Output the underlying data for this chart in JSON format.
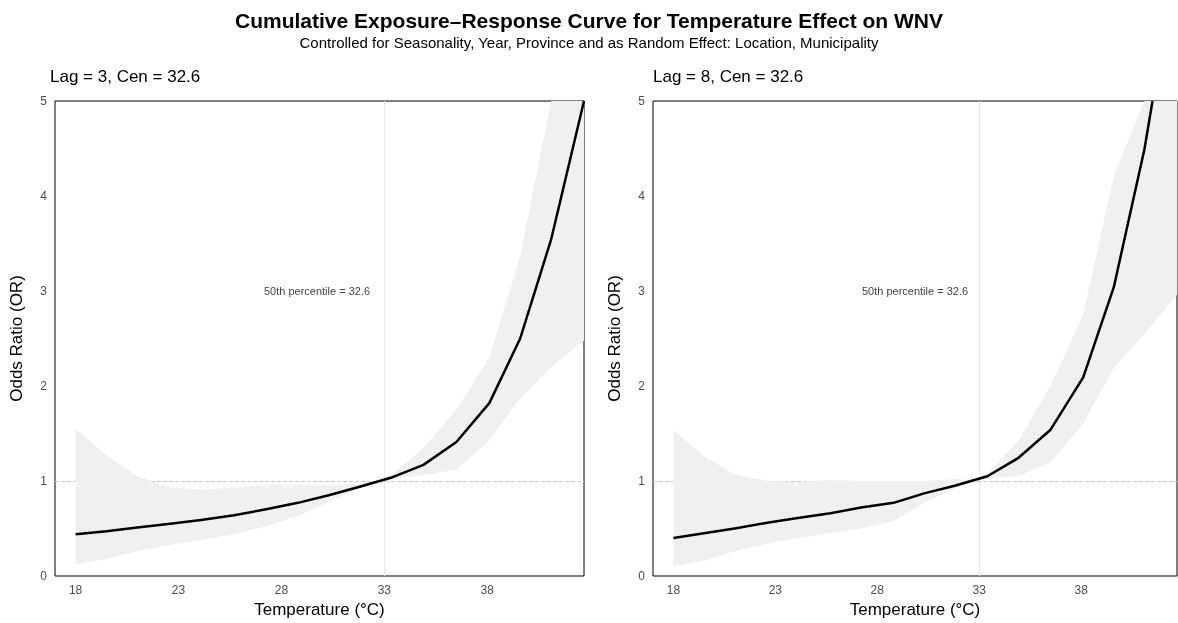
{
  "chart_data": [
    {
      "type": "line",
      "title": "Cumulative Exposure–Response Curve for Temperature Effect on WNV",
      "subtitle": "Controlled for Seasonality, Year, Province and as Random Effect: Location, Municipality",
      "xlabel": "Temperature (°C)",
      "ylabel": "Odds Ratio (OR)",
      "xlim": [
        17,
        42.7
      ],
      "xticks": [
        18,
        23,
        28,
        33,
        38
      ],
      "ylim": [
        0,
        5
      ],
      "yticks": [
        0,
        1,
        2,
        3,
        4,
        5
      ],
      "series": [
        {
          "color": "#000000",
          "x": [
            18,
            19.5,
            21,
            22.6,
            24.1,
            25.7,
            27.2,
            28.8,
            30.3,
            31.8,
            32.6,
            33.4,
            34.9,
            36.5,
            38.1,
            39.6,
            41.1,
            42.7
          ],
          "values": [
            0.44,
            0.47,
            0.51,
            0.55,
            0.59,
            0.64,
            0.7,
            0.77,
            0.85,
            0.94,
            0.99,
            1.04,
            1.17,
            1.41,
            1.82,
            2.5,
            3.54,
            5.0
          ],
          "lower": [
            0.12,
            0.18,
            0.26,
            0.33,
            0.38,
            0.44,
            0.52,
            0.63,
            0.78,
            0.93,
            0.99,
            1.02,
            1.06,
            1.12,
            1.43,
            1.87,
            2.2,
            2.48
          ],
          "upper": [
            1.55,
            1.27,
            1.05,
            0.93,
            0.91,
            0.93,
            0.96,
            0.96,
            0.95,
            0.97,
            1.0,
            1.07,
            1.35,
            1.75,
            2.3,
            3.37,
            5.0,
            5.0
          ]
        }
      ],
      "ref_lines": [
        {
          "axis": "x",
          "value": 33,
          "color": "#e6e6e6",
          "line_style": "solid"
        },
        {
          "axis": "y",
          "value": 1,
          "color": "#c8c8c8",
          "line_style": "dashed"
        }
      ],
      "annotations": [
        "Lag = 3, Cen = 32.6",
        "50th percentile = 32.6"
      ]
    },
    {
      "type": "line",
      "xlabel": "Temperature (°C)",
      "ylabel": "Odds Ratio (OR)",
      "xlim": [
        17,
        42.7
      ],
      "xticks": [
        18,
        23,
        28,
        33,
        38
      ],
      "ylim": [
        0,
        5
      ],
      "yticks": [
        0,
        1,
        2,
        3,
        4,
        5
      ],
      "series": [
        {
          "color": "#000000",
          "x": [
            18,
            19.5,
            21,
            22.6,
            24.1,
            25.7,
            27.2,
            28.8,
            30.3,
            31.8,
            32.6,
            33.4,
            34.9,
            36.5,
            38.1,
            39.6,
            41.1,
            41.5,
            42.7
          ],
          "values": [
            0.4,
            0.45,
            0.5,
            0.56,
            0.61,
            0.66,
            0.72,
            0.77,
            0.87,
            0.95,
            1.0,
            1.05,
            1.24,
            1.54,
            2.09,
            3.04,
            4.49,
            5.0,
            null
          ],
          "lower": [
            0.1,
            0.16,
            0.26,
            0.34,
            0.4,
            0.45,
            0.5,
            0.58,
            0.77,
            0.92,
            0.99,
            1.02,
            1.05,
            1.2,
            1.6,
            2.19,
            2.55,
            2.65,
            2.96
          ],
          "upper": [
            1.54,
            1.26,
            1.07,
            1.0,
            0.99,
            1.01,
            1.0,
            1.0,
            1.0,
            1.02,
            1.01,
            1.08,
            1.42,
            2.0,
            2.75,
            4.21,
            5.0,
            5.0,
            5.0
          ]
        }
      ],
      "ref_lines": [
        {
          "axis": "x",
          "value": 33,
          "color": "#e6e6e6",
          "line_style": "solid"
        },
        {
          "axis": "y",
          "value": 1,
          "color": "#c8c8c8",
          "line_style": "dashed"
        }
      ],
      "annotations": [
        "Lag = 8, Cen = 32.6",
        "50th percentile = 32.6"
      ]
    }
  ]
}
